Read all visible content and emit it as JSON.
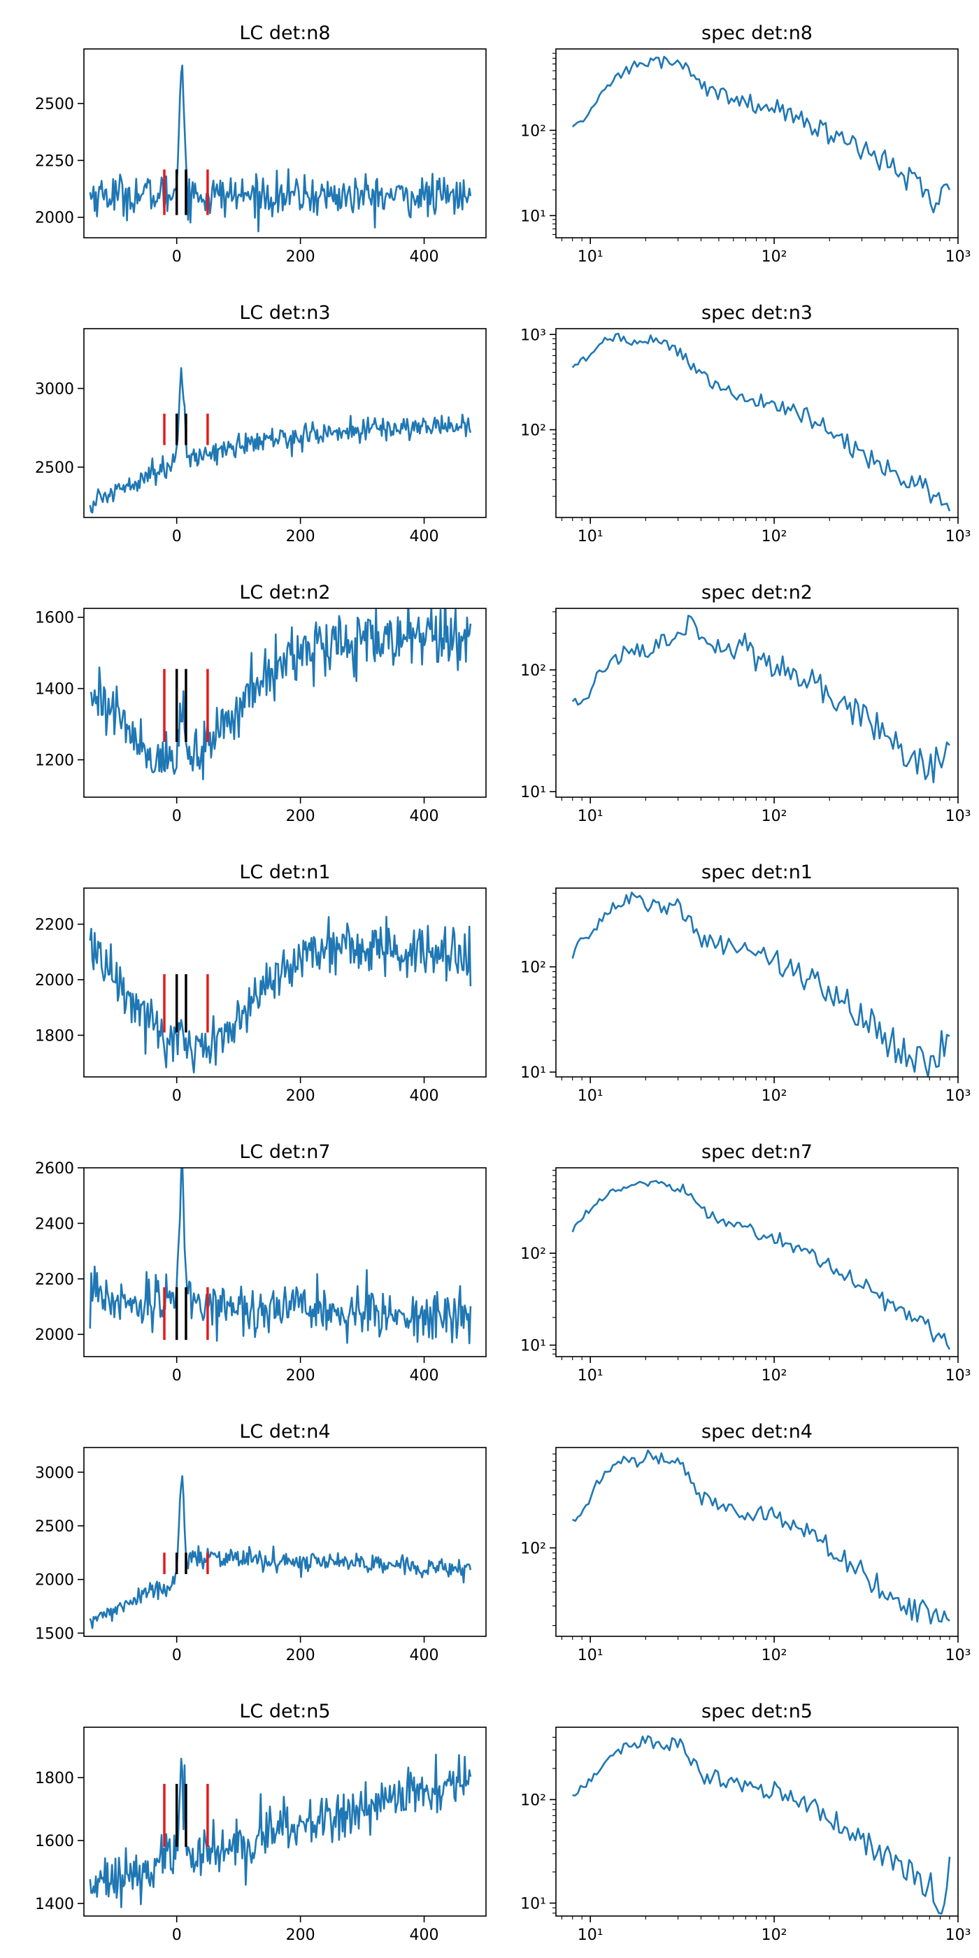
{
  "colors": {
    "series": "#1f77b4",
    "bg_marker": "#e41a1c",
    "src_marker": "#000000"
  },
  "chart_data": [
    {
      "type": "line",
      "panel": "lc",
      "detector": "n8",
      "title": "LC det:n8",
      "xlim": [
        -150,
        500
      ],
      "ylim": [
        1910,
        2740
      ],
      "xticks": [
        0,
        200,
        400
      ],
      "yticks": [
        2000,
        2250,
        2500
      ],
      "base": [
        2100,
        2090
      ],
      "noise": 45,
      "peak": {
        "t": 8,
        "amp": 580,
        "width": 4
      },
      "bg_markers": {
        "x": [
          -20,
          50
        ],
        "y": [
          2010,
          2210
        ]
      },
      "src_markers": {
        "x": [
          0,
          15
        ],
        "y": [
          2010,
          2210
        ]
      }
    },
    {
      "type": "line",
      "panel": "spec",
      "detector": "n8",
      "title": "spec det:n8",
      "log_x": true,
      "log_y": true,
      "xlim": [
        6.5,
        1000
      ],
      "ylim": [
        5.5,
        900
      ],
      "xticks": [
        {
          "value": 10,
          "label": "10¹"
        },
        {
          "value": 100,
          "label": "10²"
        },
        {
          "value": 1000,
          "label": "10³"
        }
      ],
      "yticks": [
        {
          "value": 10,
          "label": "10¹"
        },
        {
          "value": 100,
          "label": "10²"
        }
      ],
      "x": [
        8,
        9.5,
        11,
        13,
        16,
        20,
        25,
        30,
        35,
        45,
        60,
        80,
        100,
        130,
        170,
        220,
        300,
        400,
        550,
        700,
        900
      ],
      "y": [
        110,
        140,
        230,
        380,
        520,
        640,
        620,
        600,
        500,
        280,
        240,
        200,
        190,
        140,
        110,
        80,
        60,
        45,
        25,
        15,
        20
      ],
      "jitter": 0.12
    },
    {
      "type": "line",
      "panel": "lc",
      "detector": "n3",
      "title": "LC det:n3",
      "xlim": [
        -150,
        500
      ],
      "ylim": [
        2180,
        3380
      ],
      "xticks": [
        0,
        200,
        400
      ],
      "yticks": [
        2500,
        3000
      ],
      "base": [
        2250,
        2790
      ],
      "curve": "rise",
      "noise": 38,
      "peak": {
        "t": 8,
        "amp": 530,
        "width": 4
      },
      "bg_markers": {
        "x": [
          -20,
          50
        ],
        "y": [
          2640,
          2840
        ]
      },
      "src_markers": {
        "x": [
          0,
          15
        ],
        "y": [
          2640,
          2840
        ]
      }
    },
    {
      "type": "line",
      "panel": "spec",
      "detector": "n3",
      "title": "spec det:n3",
      "log_x": true,
      "log_y": true,
      "xlim": [
        6.5,
        1000
      ],
      "ylim": [
        12,
        1150
      ],
      "xticks": [
        {
          "value": 10,
          "label": "10¹"
        },
        {
          "value": 100,
          "label": "10²"
        },
        {
          "value": 1000,
          "label": "10³"
        }
      ],
      "yticks": [
        {
          "value": 100,
          "label": "10²"
        },
        {
          "value": 1000,
          "label": "10³"
        }
      ],
      "x": [
        8,
        10,
        12,
        14,
        17,
        20,
        25,
        30,
        40,
        50,
        70,
        100,
        150,
        200,
        300,
        400,
        550,
        700,
        900
      ],
      "y": [
        450,
        600,
        850,
        950,
        850,
        900,
        800,
        650,
        400,
        260,
        220,
        180,
        140,
        100,
        55,
        40,
        30,
        22,
        14
      ],
      "jitter": 0.09
    },
    {
      "type": "line",
      "panel": "lc",
      "detector": "n2",
      "title": "LC det:n2",
      "xlim": [
        -150,
        500
      ],
      "ylim": [
        1095,
        1625
      ],
      "xticks": [
        0,
        200,
        400
      ],
      "yticks": [
        1200,
        1400,
        1600
      ],
      "base": [
        1500,
        1550
      ],
      "curve": "valley",
      "valley": {
        "t": 0,
        "depth": 320,
        "width": 90
      },
      "noise": 40,
      "peak": {
        "t": 8,
        "amp": 150,
        "width": 4
      },
      "bg_markers": {
        "x": [
          -20,
          50
        ],
        "y": [
          1250,
          1455
        ]
      },
      "src_markers": {
        "x": [
          0,
          15
        ],
        "y": [
          1250,
          1455
        ]
      }
    },
    {
      "type": "line",
      "panel": "spec",
      "detector": "n2",
      "title": "spec det:n2",
      "log_x": true,
      "log_y": true,
      "xlim": [
        6.5,
        1000
      ],
      "ylim": [
        9,
        320
      ],
      "xticks": [
        {
          "value": 10,
          "label": "10¹"
        },
        {
          "value": 100,
          "label": "10²"
        },
        {
          "value": 1000,
          "label": "10³"
        }
      ],
      "yticks": [
        {
          "value": 10,
          "label": "10¹"
        },
        {
          "value": 100,
          "label": "10²"
        }
      ],
      "x": [
        8,
        9.5,
        11,
        13,
        16,
        20,
        25,
        30,
        35,
        40,
        50,
        60,
        70,
        80,
        100,
        130,
        170,
        220,
        300,
        400,
        550,
        700,
        900
      ],
      "y": [
        55,
        55,
        90,
        110,
        150,
        140,
        180,
        200,
        250,
        160,
        160,
        130,
        170,
        110,
        110,
        95,
        75,
        55,
        40,
        30,
        20,
        15,
        24
      ],
      "jitter": 0.11
    },
    {
      "type": "line",
      "panel": "lc",
      "detector": "n1",
      "title": "LC det:n1",
      "xlim": [
        -150,
        500
      ],
      "ylim": [
        1650,
        2330
      ],
      "xticks": [
        0,
        200,
        400
      ],
      "yticks": [
        1800,
        2000,
        2200
      ],
      "base": [
        2230,
        2080
      ],
      "curve": "valley",
      "valley": {
        "t": 20,
        "depth": 440,
        "width": 95
      },
      "noise": 50,
      "peak": {
        "t": 8,
        "amp": 90,
        "width": 4
      },
      "bg_markers": {
        "x": [
          -20,
          50
        ],
        "y": [
          1810,
          2020
        ]
      },
      "src_markers": {
        "x": [
          0,
          15
        ],
        "y": [
          1810,
          2020
        ]
      }
    },
    {
      "type": "line",
      "panel": "spec",
      "detector": "n1",
      "title": "spec det:n1",
      "log_x": true,
      "log_y": true,
      "xlim": [
        6.5,
        1000
      ],
      "ylim": [
        9,
        560
      ],
      "xticks": [
        {
          "value": 10,
          "label": "10¹"
        },
        {
          "value": 100,
          "label": "10²"
        },
        {
          "value": 1000,
          "label": "10³"
        }
      ],
      "yticks": [
        {
          "value": 10,
          "label": "10¹"
        },
        {
          "value": 100,
          "label": "10²"
        }
      ],
      "x": [
        8,
        9,
        10,
        12,
        14,
        17,
        20,
        25,
        30,
        35,
        40,
        50,
        70,
        100,
        130,
        170,
        220,
        300,
        400,
        550,
        700,
        900
      ],
      "y": [
        120,
        190,
        200,
        300,
        420,
        440,
        400,
        360,
        370,
        290,
        170,
        160,
        160,
        120,
        90,
        70,
        50,
        35,
        20,
        15,
        12,
        22
      ],
      "jitter": 0.13
    },
    {
      "type": "line",
      "panel": "lc",
      "detector": "n7",
      "title": "LC det:n7",
      "xlim": [
        -150,
        500
      ],
      "ylim": [
        1920,
        2600
      ],
      "xticks": [
        0,
        200,
        400
      ],
      "yticks": [
        2000,
        2200,
        2400,
        2600
      ],
      "base": [
        2130,
        2060
      ],
      "noise": 45,
      "peak": {
        "t": 8,
        "amp": 480,
        "width": 4
      },
      "bg_markers": {
        "x": [
          -20,
          50
        ],
        "y": [
          1980,
          2170
        ]
      },
      "src_markers": {
        "x": [
          0,
          15
        ],
        "y": [
          1980,
          2170
        ]
      }
    },
    {
      "type": "line",
      "panel": "spec",
      "detector": "n7",
      "title": "spec det:n7",
      "log_x": true,
      "log_y": true,
      "xlim": [
        6.5,
        1000
      ],
      "ylim": [
        7.5,
        850
      ],
      "xticks": [
        {
          "value": 10,
          "label": "10¹"
        },
        {
          "value": 100,
          "label": "10²"
        },
        {
          "value": 1000,
          "label": "10³"
        }
      ],
      "yticks": [
        {
          "value": 10,
          "label": "10¹"
        },
        {
          "value": 100,
          "label": "10²"
        }
      ],
      "x": [
        8,
        9,
        11,
        13,
        16,
        20,
        25,
        30,
        35,
        40,
        50,
        60,
        70,
        80,
        100,
        130,
        170,
        220,
        300,
        400,
        550,
        700,
        900
      ],
      "y": [
        170,
        250,
        350,
        480,
        550,
        600,
        580,
        520,
        460,
        300,
        220,
        200,
        210,
        160,
        150,
        120,
        90,
        65,
        45,
        30,
        22,
        15,
        9
      ],
      "jitter": 0.08
    },
    {
      "type": "line",
      "panel": "lc",
      "detector": "n4",
      "title": "LC det:n4",
      "xlim": [
        -150,
        500
      ],
      "ylim": [
        1470,
        3230
      ],
      "xticks": [
        0,
        200,
        400
      ],
      "yticks": [
        1500,
        2000,
        2500,
        3000
      ],
      "base": [
        1600,
        2100
      ],
      "curve": "step",
      "noise": 45,
      "peak": {
        "t": 8,
        "amp": 900,
        "width": 4
      },
      "bg_markers": {
        "x": [
          -20,
          50
        ],
        "y": [
          2050,
          2250
        ]
      },
      "src_markers": {
        "x": [
          0,
          15
        ],
        "y": [
          2050,
          2250
        ]
      }
    },
    {
      "type": "line",
      "panel": "spec",
      "detector": "n4",
      "title": "spec det:n4",
      "log_x": true,
      "log_y": true,
      "xlim": [
        6.5,
        1000
      ],
      "ylim": [
        16,
        800
      ],
      "xticks": [
        {
          "value": 10,
          "label": "10¹"
        },
        {
          "value": 100,
          "label": "10²"
        },
        {
          "value": 1000,
          "label": "10³"
        }
      ],
      "yticks": [
        {
          "value": 100,
          "label": "10²"
        }
      ],
      "x": [
        8,
        9,
        11,
        13,
        15,
        18,
        20,
        25,
        30,
        35,
        40,
        50,
        60,
        80,
        100,
        130,
        170,
        220,
        300,
        400,
        550,
        700,
        900
      ],
      "y": [
        180,
        200,
        400,
        550,
        650,
        560,
        680,
        620,
        600,
        420,
        280,
        250,
        230,
        200,
        190,
        160,
        120,
        90,
        60,
        40,
        30,
        25,
        22
      ],
      "jitter": 0.09
    },
    {
      "type": "line",
      "panel": "lc",
      "detector": "n5",
      "title": "LC det:n5",
      "xlim": [
        -150,
        500
      ],
      "ylim": [
        1360,
        1960
      ],
      "xticks": [
        0,
        200,
        400
      ],
      "yticks": [
        1400,
        1600,
        1800
      ],
      "base": [
        1460,
        1800
      ],
      "curve": "rise_linear",
      "noise": 40,
      "peak": {
        "t": 8,
        "amp": 250,
        "width": 4
      },
      "bg_markers": {
        "x": [
          -20,
          50
        ],
        "y": [
          1580,
          1780
        ]
      },
      "src_markers": {
        "x": [
          0,
          15
        ],
        "y": [
          1580,
          1780
        ]
      }
    },
    {
      "type": "line",
      "panel": "spec",
      "detector": "n5",
      "title": "spec det:n5",
      "log_x": true,
      "log_y": true,
      "xlim": [
        6.5,
        1000
      ],
      "ylim": [
        7.5,
        500
      ],
      "xticks": [
        {
          "value": 10,
          "label": "10¹"
        },
        {
          "value": 100,
          "label": "10²"
        },
        {
          "value": 1000,
          "label": "10³"
        }
      ],
      "yticks": [
        {
          "value": 10,
          "label": "10¹"
        },
        {
          "value": 100,
          "label": "10²"
        }
      ],
      "x": [
        8,
        9,
        10,
        12,
        14,
        17,
        20,
        25,
        30,
        35,
        40,
        50,
        60,
        80,
        100,
        130,
        170,
        220,
        300,
        400,
        550,
        700,
        850,
        900
      ],
      "y": [
        110,
        130,
        150,
        250,
        300,
        340,
        370,
        330,
        360,
        250,
        170,
        160,
        150,
        130,
        120,
        100,
        80,
        60,
        40,
        30,
        20,
        15,
        9,
        28
      ],
      "jitter": 0.1
    }
  ]
}
